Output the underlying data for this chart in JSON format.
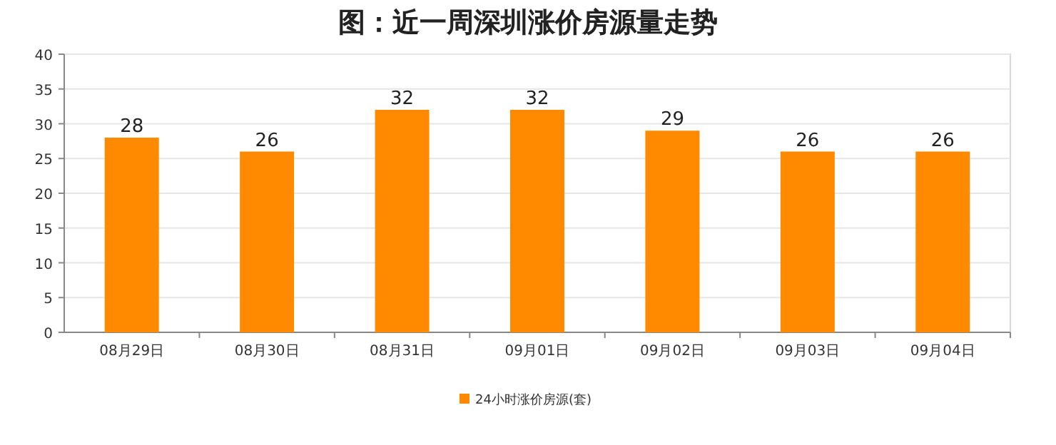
{
  "chart_data": {
    "type": "bar",
    "title": "图：近一周深圳涨价房源量走势",
    "categories": [
      "08月29日",
      "08月30日",
      "08月31日",
      "09月01日",
      "09月02日",
      "09月03日",
      "09月04日"
    ],
    "series": [
      {
        "name": "24小时涨价房源(套)",
        "color": "#ff8a00",
        "values": [
          28,
          26,
          32,
          32,
          29,
          26,
          26
        ]
      }
    ],
    "ylim": [
      0,
      40
    ],
    "yticks": [
      0,
      5,
      10,
      15,
      20,
      25,
      30,
      35,
      40
    ],
    "grid": "y",
    "data_labels": true,
    "legend": "bottom"
  }
}
